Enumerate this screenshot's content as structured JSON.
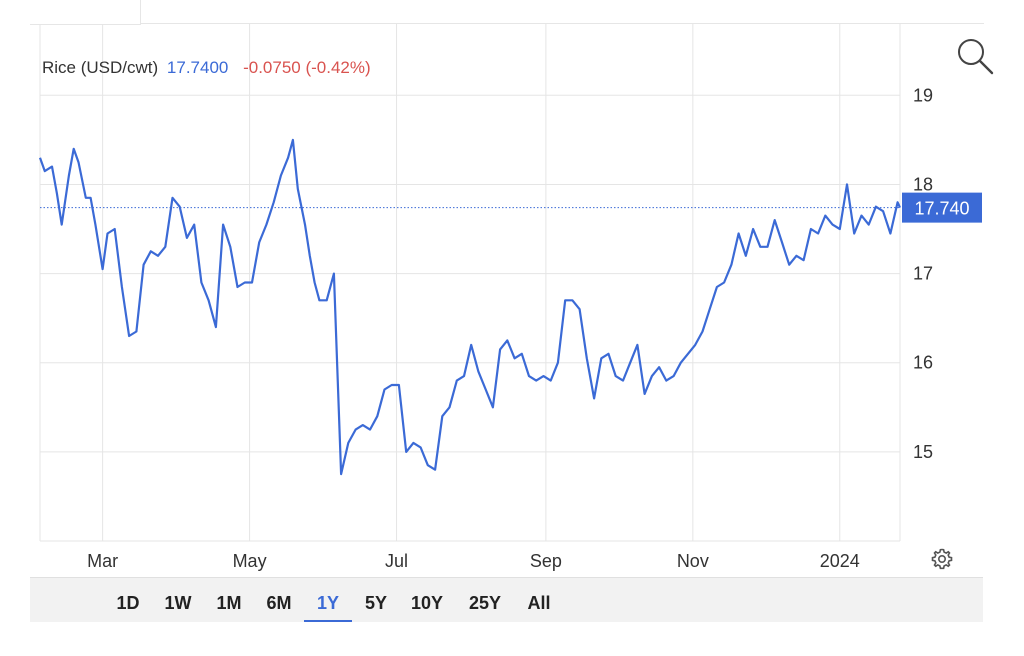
{
  "header": {
    "instrument": "Rice (USD/cwt)",
    "price": "17.7400",
    "change": "-0.0750 (-0.42%)"
  },
  "colors": {
    "line": "#3b6ad6",
    "negative": "#d9534f",
    "grid": "#e5e5e5",
    "badge_bg": "#3b6ad6"
  },
  "icons": {
    "search": "search-icon",
    "settings": "gear-icon"
  },
  "range_buttons": [
    {
      "label": "1D",
      "active": false
    },
    {
      "label": "1W",
      "active": false
    },
    {
      "label": "1M",
      "active": false
    },
    {
      "label": "6M",
      "active": false
    },
    {
      "label": "1Y",
      "active": true
    },
    {
      "label": "5Y",
      "active": false
    },
    {
      "label": "10Y",
      "active": false
    },
    {
      "label": "25Y",
      "active": false
    },
    {
      "label": "All",
      "active": false
    }
  ],
  "chart_data": {
    "type": "line",
    "title": "",
    "xlabel": "",
    "ylabel": "",
    "last_value_label": "17.740",
    "last_value": 17.74,
    "ylim": [
      14.0,
      19.8
    ],
    "yticks": [
      15,
      16,
      17,
      18,
      19
    ],
    "xlim": [
      "2023-02-03",
      "2024-01-26"
    ],
    "xticks": [
      {
        "label": "Mar",
        "date": "2023-03-01"
      },
      {
        "label": "May",
        "date": "2023-05-01"
      },
      {
        "label": "Jul",
        "date": "2023-07-01"
      },
      {
        "label": "Sep",
        "date": "2023-09-01"
      },
      {
        "label": "Nov",
        "date": "2023-11-01"
      },
      {
        "label": "2024",
        "date": "2024-01-01"
      }
    ],
    "grid": true,
    "series": [
      {
        "x": [
          "2023-02-03",
          "2023-02-05",
          "2023-02-08",
          "2023-02-10",
          "2023-02-12",
          "2023-02-15",
          "2023-02-17",
          "2023-02-19",
          "2023-02-22",
          "2023-02-24",
          "2023-02-26",
          "2023-03-01",
          "2023-03-03",
          "2023-03-06",
          "2023-03-09",
          "2023-03-12",
          "2023-03-15",
          "2023-03-18",
          "2023-03-21",
          "2023-03-24",
          "2023-03-27",
          "2023-03-30",
          "2023-04-02",
          "2023-04-05",
          "2023-04-08",
          "2023-04-11",
          "2023-04-14",
          "2023-04-17",
          "2023-04-20",
          "2023-04-23",
          "2023-04-26",
          "2023-04-29",
          "2023-05-02",
          "2023-05-05",
          "2023-05-08",
          "2023-05-11",
          "2023-05-14",
          "2023-05-17",
          "2023-05-19",
          "2023-05-21",
          "2023-05-24",
          "2023-05-26",
          "2023-05-28",
          "2023-05-30",
          "2023-06-02",
          "2023-06-05",
          "2023-06-08",
          "2023-06-11",
          "2023-06-14",
          "2023-06-17",
          "2023-06-20",
          "2023-06-23",
          "2023-06-26",
          "2023-06-29",
          "2023-07-02",
          "2023-07-05",
          "2023-07-08",
          "2023-07-11",
          "2023-07-14",
          "2023-07-17",
          "2023-07-20",
          "2023-07-23",
          "2023-07-26",
          "2023-07-29",
          "2023-08-01",
          "2023-08-04",
          "2023-08-07",
          "2023-08-10",
          "2023-08-13",
          "2023-08-16",
          "2023-08-19",
          "2023-08-22",
          "2023-08-25",
          "2023-08-28",
          "2023-08-31",
          "2023-09-03",
          "2023-09-06",
          "2023-09-09",
          "2023-09-12",
          "2023-09-15",
          "2023-09-18",
          "2023-09-21",
          "2023-09-24",
          "2023-09-27",
          "2023-09-30",
          "2023-10-03",
          "2023-10-06",
          "2023-10-09",
          "2023-10-12",
          "2023-10-15",
          "2023-10-18",
          "2023-10-21",
          "2023-10-24",
          "2023-10-27",
          "2023-10-30",
          "2023-11-02",
          "2023-11-05",
          "2023-11-08",
          "2023-11-11",
          "2023-11-14",
          "2023-11-17",
          "2023-11-20",
          "2023-11-23",
          "2023-11-26",
          "2023-11-29",
          "2023-12-02",
          "2023-12-05",
          "2023-12-08",
          "2023-12-11",
          "2023-12-14",
          "2023-12-17",
          "2023-12-20",
          "2023-12-23",
          "2023-12-26",
          "2023-12-29",
          "2024-01-01",
          "2024-01-04",
          "2024-01-07",
          "2024-01-10",
          "2024-01-13",
          "2024-01-16",
          "2024-01-19",
          "2024-01-22",
          "2024-01-25",
          "2024-01-26"
        ],
        "values": [
          18.3,
          18.15,
          18.2,
          17.9,
          17.55,
          18.1,
          18.4,
          18.25,
          17.85,
          17.85,
          17.55,
          17.05,
          17.45,
          17.5,
          16.85,
          16.3,
          16.35,
          17.1,
          17.25,
          17.2,
          17.3,
          17.85,
          17.75,
          17.4,
          17.55,
          16.9,
          16.7,
          16.4,
          17.55,
          17.3,
          16.85,
          16.9,
          16.9,
          17.35,
          17.55,
          17.8,
          18.1,
          18.3,
          18.5,
          17.95,
          17.55,
          17.2,
          16.9,
          16.7,
          16.7,
          17.0,
          14.75,
          15.1,
          15.25,
          15.3,
          15.25,
          15.4,
          15.7,
          15.75,
          15.75,
          15.0,
          15.1,
          15.05,
          14.85,
          14.8,
          15.4,
          15.5,
          15.8,
          15.85,
          16.2,
          15.9,
          15.7,
          15.5,
          16.15,
          16.25,
          16.05,
          16.1,
          15.85,
          15.8,
          15.85,
          15.8,
          16.0,
          16.7,
          16.7,
          16.6,
          16.05,
          15.6,
          16.05,
          16.1,
          15.85,
          15.8,
          16.0,
          16.2,
          15.65,
          15.85,
          15.95,
          15.8,
          15.85,
          16.0,
          16.1,
          16.2,
          16.35,
          16.6,
          16.85,
          16.9,
          17.1,
          17.45,
          17.2,
          17.5,
          17.3,
          17.3,
          17.6,
          17.35,
          17.1,
          17.2,
          17.15,
          17.5,
          17.45,
          17.65,
          17.55,
          17.5,
          18.0,
          17.45,
          17.65,
          17.55,
          17.75,
          17.7,
          17.45,
          17.8,
          17.74
        ]
      }
    ]
  }
}
